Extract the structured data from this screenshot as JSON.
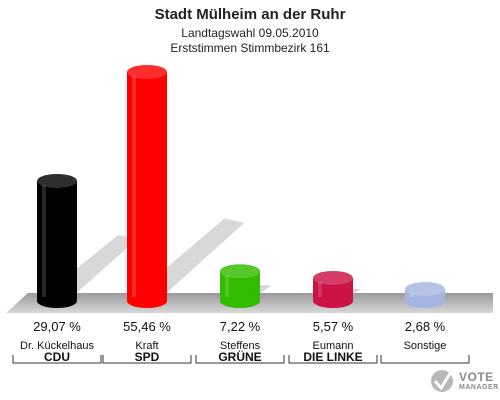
{
  "header": {
    "title": "Stadt Mülheim an der Ruhr",
    "subtitle": "Landtagswahl 09.05.2010",
    "subtitle2": "Erststimmen Stimmbezirk 161"
  },
  "chart_data": {
    "type": "bar",
    "categories": [
      "CDU",
      "SPD",
      "GRÜNE",
      "DIE LINKE",
      "Sonstige"
    ],
    "candidates": [
      "Dr. Kückelhaus",
      "Kraft",
      "Steffens",
      "Eumann",
      "Sonstige"
    ],
    "values": [
      29.07,
      55.46,
      7.22,
      5.57,
      2.68
    ],
    "value_labels": [
      "29,07 %",
      "55,46 %",
      "7,22 %",
      "5,57 %",
      "2,68 %"
    ],
    "colors": [
      "#000000",
      "#ff0000",
      "#33bb00",
      "#cc1144",
      "#a6b4e0"
    ],
    "ylim": [
      0,
      55.46
    ],
    "grid": false,
    "legend": "none"
  },
  "logo": {
    "line1": "VOTE",
    "line2": "MANAGER"
  }
}
